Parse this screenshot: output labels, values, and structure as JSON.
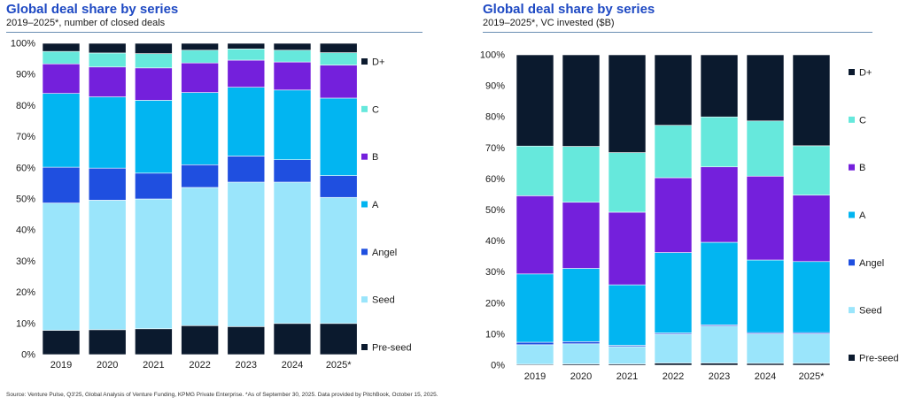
{
  "colors": {
    "Pre-seed": "#0b1a2e",
    "Seed": "#9ae5fb",
    "Angel": "#1f4fe0",
    "A": "#02b5f1",
    "B": "#7420dc",
    "C": "#66e8dc",
    "D+": "#0b1a2e"
  },
  "charts": [
    {
      "title": "Global deal share by series",
      "subtitle": "2019–2025*, number of closed deals"
    },
    {
      "title": "Global deal share by series",
      "subtitle": "2019–2025*, VC invested ($B)"
    }
  ],
  "chart_data": [
    {
      "type": "bar",
      "stacked": true,
      "title": "Global deal share by series",
      "subtitle": "2019–2025*, number of closed deals",
      "categories": [
        "2019",
        "2020",
        "2021",
        "2022",
        "2023",
        "2024",
        "2025*"
      ],
      "ylim": [
        0,
        100
      ],
      "y_ticks": [
        "0%",
        "10%",
        "20%",
        "30%",
        "40%",
        "50%",
        "60%",
        "70%",
        "80%",
        "90%",
        "100%"
      ],
      "legend_position": "right",
      "series": [
        {
          "name": "Pre-seed",
          "values": [
            7.8,
            8.0,
            8.3,
            9.3,
            9.0,
            10.0,
            10.0
          ]
        },
        {
          "name": "Seed",
          "values": [
            40.9,
            41.6,
            41.7,
            44.4,
            46.4,
            45.4,
            40.5
          ]
        },
        {
          "name": "Angel",
          "values": [
            11.5,
            10.3,
            8.3,
            7.3,
            8.4,
            7.2,
            7.0
          ]
        },
        {
          "name": "A",
          "values": [
            23.7,
            22.9,
            23.4,
            23.2,
            22.1,
            22.4,
            24.9
          ]
        },
        {
          "name": "B",
          "values": [
            9.5,
            9.6,
            10.4,
            9.5,
            8.7,
            9.0,
            10.6
          ]
        },
        {
          "name": "C",
          "values": [
            4.0,
            4.5,
            4.6,
            4.1,
            3.6,
            3.8,
            4.0
          ]
        },
        {
          "name": "D+",
          "values": [
            2.6,
            3.1,
            3.3,
            2.2,
            1.8,
            2.2,
            3.0
          ]
        }
      ]
    },
    {
      "type": "bar",
      "stacked": true,
      "title": "Global deal share by series",
      "subtitle": "2019–2025*, VC invested ($B)",
      "categories": [
        "2019",
        "2020",
        "2021",
        "2022",
        "2023",
        "2024",
        "2025*"
      ],
      "ylim": [
        0,
        100
      ],
      "y_ticks": [
        "0%",
        "10%",
        "20%",
        "30%",
        "40%",
        "50%",
        "60%",
        "70%",
        "80%",
        "90%",
        "100%"
      ],
      "legend_position": "right",
      "series": [
        {
          "name": "Pre-seed",
          "values": [
            0.3,
            0.4,
            0.4,
            0.7,
            0.7,
            0.6,
            0.6
          ]
        },
        {
          "name": "Seed",
          "values": [
            6.3,
            6.5,
            5.6,
            9.3,
            11.9,
            9.5,
            9.5
          ]
        },
        {
          "name": "Angel",
          "values": [
            0.8,
            0.7,
            0.4,
            0.4,
            0.4,
            0.4,
            0.4
          ]
        },
        {
          "name": "A",
          "values": [
            22.0,
            23.6,
            19.5,
            25.9,
            26.6,
            23.4,
            22.9
          ]
        },
        {
          "name": "B",
          "values": [
            25.2,
            21.3,
            23.4,
            24.1,
            24.3,
            27.0,
            21.4
          ]
        },
        {
          "name": "C",
          "values": [
            16.0,
            18.0,
            19.2,
            16.9,
            16.1,
            17.8,
            15.9
          ]
        },
        {
          "name": "D+",
          "values": [
            29.4,
            29.5,
            31.5,
            22.7,
            20.0,
            21.3,
            29.3
          ]
        }
      ]
    }
  ],
  "source": "Source: Venture Pulse, Q3'25, Global Analysis of Venture Funding, KPMG Private Enterprise. *As of September 30, 2025. Data provided by PitchBook, October 15, 2025."
}
